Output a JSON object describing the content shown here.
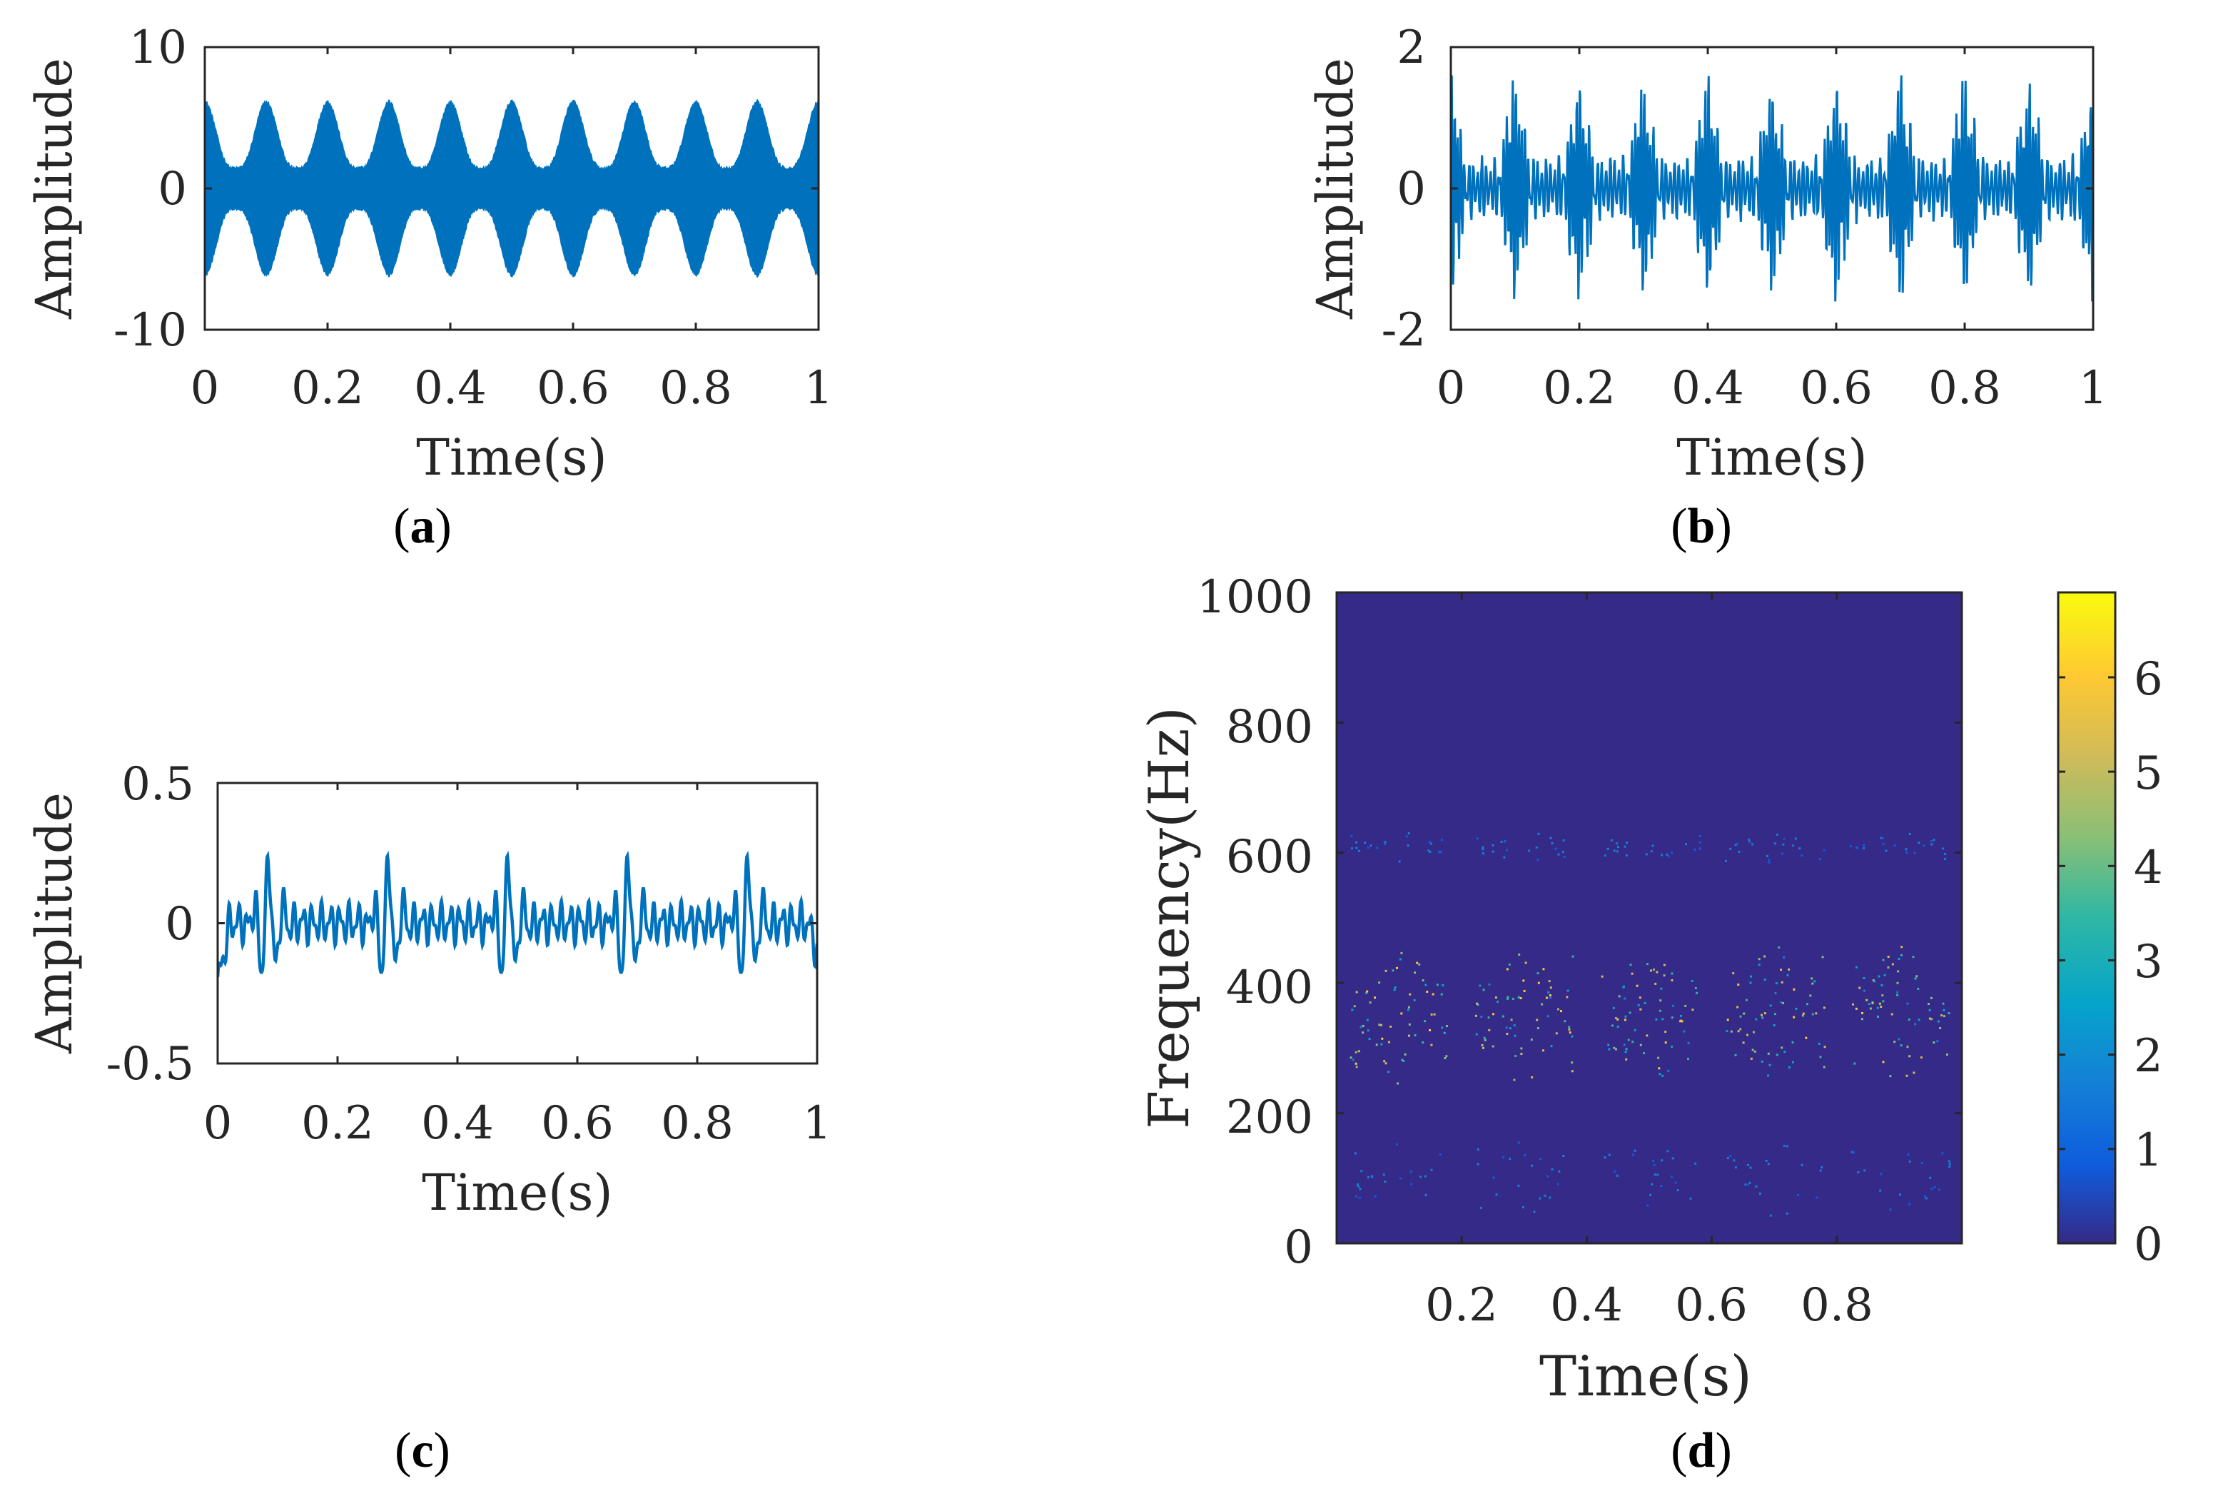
{
  "colors": {
    "line": "#0072BD",
    "spectrogram_bg": "#352A87",
    "axis": "#262626"
  },
  "chart_data": [
    {
      "id": "a",
      "type": "line",
      "caption": "a",
      "xlabel": "Time(s)",
      "ylabel": "Amplitude",
      "xlim": [
        0,
        1
      ],
      "ylim": [
        -10,
        10
      ],
      "xticks": [
        "0",
        "0.2",
        "0.4",
        "0.6",
        "0.8",
        "1"
      ],
      "xtick_values": [
        0,
        0.2,
        0.4,
        0.6,
        0.8,
        1
      ],
      "yticks": [
        "-10",
        "0",
        "10"
      ],
      "ytick_values": [
        -10,
        0,
        10
      ],
      "signal": {
        "description_model": "amplitude-modulated carrier",
        "envelope_peak": 6.2,
        "envelope_min": 1.5,
        "modulation_period_s": 0.1
      }
    },
    {
      "id": "b",
      "type": "line",
      "caption": "b",
      "xlabel": "Time(s)",
      "ylabel": "Amplitude",
      "xlim": [
        0,
        1
      ],
      "ylim": [
        -2,
        2
      ],
      "xticks": [
        "0",
        "0.2",
        "0.4",
        "0.6",
        "0.8",
        "1"
      ],
      "xtick_values": [
        0,
        0.2,
        0.4,
        0.6,
        0.8,
        1
      ],
      "yticks": [
        "-2",
        "0",
        "2"
      ],
      "ytick_values": [
        -2,
        0,
        2
      ],
      "signal": {
        "description_model": "bursty oscillation",
        "peak": 1.55,
        "burst_period_s": 0.1
      }
    },
    {
      "id": "c",
      "type": "line",
      "caption": "c",
      "xlabel": "Time(s)",
      "ylabel": "Amplitude",
      "xlim": [
        0,
        1
      ],
      "ylim": [
        -0.5,
        0.5
      ],
      "xticks": [
        "0",
        "0.2",
        "0.4",
        "0.6",
        "0.8",
        "1"
      ],
      "xtick_values": [
        0,
        0.2,
        0.4,
        0.6,
        0.8,
        1
      ],
      "yticks": [
        "-0.5",
        "0",
        "0.5"
      ],
      "ytick_values": [
        -0.5,
        0,
        0.5
      ],
      "signal": {
        "description_model": "low-frequency oscillation with periodic pulses",
        "pulse_peak": 0.21,
        "pulse_trough": -0.22,
        "pulse_period_s": 0.2
      }
    },
    {
      "id": "d",
      "type": "heatmap",
      "caption": "d",
      "xlabel": "Time(s)",
      "ylabel": "Frequency(Hz)",
      "xlim": [
        0,
        1
      ],
      "ylim": [
        0,
        1000
      ],
      "xticks": [
        "0.2",
        "0.4",
        "0.6",
        "0.8"
      ],
      "xtick_values": [
        0.2,
        0.4,
        0.6,
        0.8
      ],
      "yticks": [
        "0",
        "200",
        "400",
        "600",
        "800",
        "1000"
      ],
      "ytick_values": [
        0,
        200,
        400,
        600,
        800,
        1000
      ],
      "colorbar": {
        "ticks": [
          "0",
          "1",
          "2",
          "3",
          "4",
          "5",
          "6"
        ],
        "tick_values": [
          0,
          1,
          2,
          3,
          4,
          5,
          6
        ],
        "range": [
          0,
          6.9
        ]
      },
      "bands": [
        {
          "center_hz": 350,
          "spread_hz": 110,
          "peak": 6.5
        },
        {
          "center_hz": 610,
          "spread_hz": 25,
          "peak": 2.0
        },
        {
          "center_hz": 100,
          "spread_hz": 60,
          "peak": 2.0
        }
      ],
      "cycle_period_s": 0.2
    }
  ]
}
